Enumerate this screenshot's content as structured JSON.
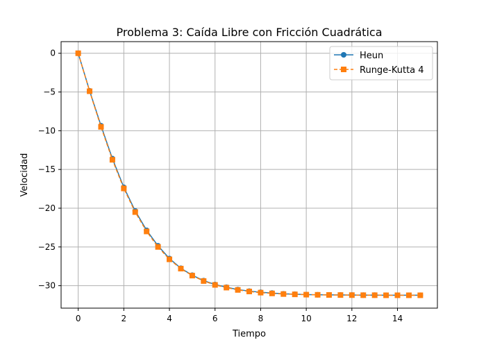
{
  "chart_data": {
    "type": "line",
    "title": "Problema 3: Caída Libre con Fricción Cuadrática",
    "xlabel": "Tiempo",
    "ylabel": "Velocidad",
    "xlim": [
      -0.75,
      15.75
    ],
    "ylim": [
      -32.9,
      1.5
    ],
    "xticks": [
      0,
      2,
      4,
      6,
      8,
      10,
      12,
      14
    ],
    "yticks": [
      0,
      -5,
      -10,
      -15,
      -20,
      -25,
      -30
    ],
    "grid": true,
    "legend_position": "top-right",
    "x": [
      0,
      0.5,
      1,
      1.5,
      2,
      2.5,
      3,
      3.5,
      4,
      4.5,
      5,
      5.5,
      6,
      6.5,
      7,
      7.5,
      8,
      8.5,
      9,
      9.5,
      10,
      10.5,
      11,
      11.5,
      12,
      12.5,
      13,
      13.5,
      14,
      14.5,
      15
    ],
    "series": [
      {
        "name": "Heun",
        "color": "#1f77b4",
        "marker": "circle",
        "line": "solid",
        "values": [
          0,
          -4.85,
          -9.35,
          -13.6,
          -17.3,
          -20.35,
          -22.85,
          -24.85,
          -26.5,
          -27.75,
          -28.65,
          -29.35,
          -29.85,
          -30.2,
          -30.5,
          -30.7,
          -30.85,
          -30.95,
          -31.05,
          -31.1,
          -31.15,
          -31.17,
          -31.19,
          -31.2,
          -31.21,
          -31.22,
          -31.22,
          -31.23,
          -31.23,
          -31.23,
          -31.23
        ]
      },
      {
        "name": "Runge-Kutta 4",
        "color": "#ff7f0e",
        "marker": "square",
        "line": "dashed",
        "values": [
          0,
          -4.9,
          -9.5,
          -13.75,
          -17.45,
          -20.5,
          -23.0,
          -25.0,
          -26.6,
          -27.8,
          -28.7,
          -29.4,
          -29.9,
          -30.25,
          -30.55,
          -30.75,
          -30.9,
          -31.0,
          -31.08,
          -31.12,
          -31.16,
          -31.18,
          -31.2,
          -31.21,
          -31.22,
          -31.23,
          -31.23,
          -31.24,
          -31.24,
          -31.24,
          -31.24
        ]
      }
    ]
  }
}
